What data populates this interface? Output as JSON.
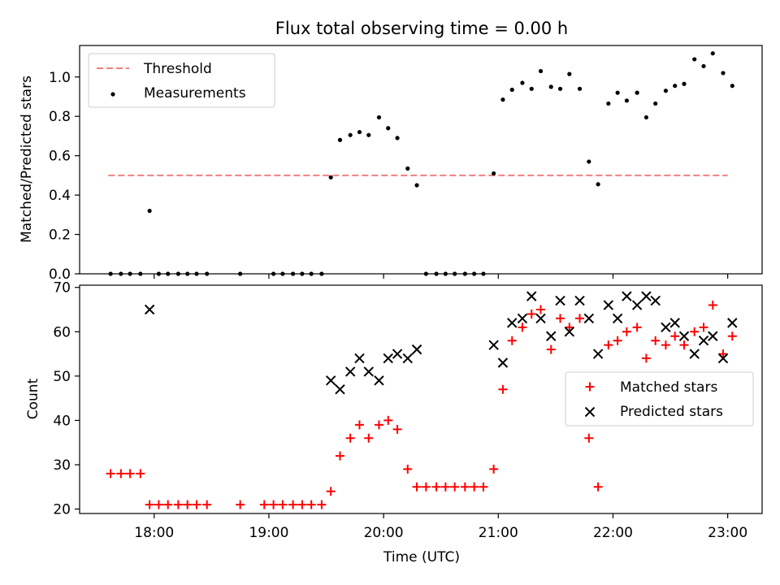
{
  "title": "Flux total observing time = 0.00 h",
  "chart_data": [
    {
      "type": "scatter",
      "ylabel": "Matched/Predicted stars",
      "xlim": [
        17.35,
        23.3
      ],
      "ylim": [
        0.0,
        1.16
      ],
      "yticks": [
        "0.0",
        "0.2",
        "0.4",
        "0.6",
        "0.8",
        "1.0"
      ],
      "legend_position": "top-left",
      "threshold": {
        "name": "Threshold",
        "value": 0.5,
        "x_range": [
          17.6,
          23.0
        ],
        "color": "#f08080",
        "style": "dashed"
      },
      "series": [
        {
          "name": "Measurements",
          "color": "#000000",
          "marker": "dot",
          "points": [
            [
              17.62,
              0
            ],
            [
              17.71,
              0
            ],
            [
              17.79,
              0
            ],
            [
              17.88,
              0
            ],
            [
              17.96,
              0.32
            ],
            [
              18.04,
              0
            ],
            [
              18.12,
              0
            ],
            [
              18.21,
              0
            ],
            [
              18.29,
              0
            ],
            [
              18.37,
              0
            ],
            [
              18.46,
              0
            ],
            [
              18.75,
              0
            ],
            [
              19.04,
              0
            ],
            [
              19.12,
              0
            ],
            [
              19.21,
              0
            ],
            [
              19.29,
              0
            ],
            [
              19.37,
              0
            ],
            [
              19.46,
              0
            ],
            [
              19.54,
              0.49
            ],
            [
              19.62,
              0.68
            ],
            [
              19.71,
              0.705
            ],
            [
              19.79,
              0.72
            ],
            [
              19.87,
              0.705
            ],
            [
              19.96,
              0.795
            ],
            [
              20.04,
              0.74
            ],
            [
              20.12,
              0.69
            ],
            [
              20.21,
              0.535
            ],
            [
              20.29,
              0.45
            ],
            [
              20.37,
              0
            ],
            [
              20.46,
              0
            ],
            [
              20.54,
              0
            ],
            [
              20.62,
              0
            ],
            [
              20.71,
              0
            ],
            [
              20.79,
              0
            ],
            [
              20.87,
              0
            ],
            [
              20.96,
              0.51
            ],
            [
              21.04,
              0.885
            ],
            [
              21.12,
              0.935
            ],
            [
              21.21,
              0.97
            ],
            [
              21.29,
              0.94
            ],
            [
              21.37,
              1.03
            ],
            [
              21.46,
              0.95
            ],
            [
              21.54,
              0.94
            ],
            [
              21.62,
              1.015
            ],
            [
              21.71,
              0.94
            ],
            [
              21.79,
              0.57
            ],
            [
              21.87,
              0.455
            ],
            [
              21.96,
              0.865
            ],
            [
              22.04,
              0.92
            ],
            [
              22.12,
              0.88
            ],
            [
              22.21,
              0.92
            ],
            [
              22.29,
              0.795
            ],
            [
              22.37,
              0.865
            ],
            [
              22.46,
              0.93
            ],
            [
              22.54,
              0.955
            ],
            [
              22.62,
              0.965
            ],
            [
              22.71,
              1.09
            ],
            [
              22.79,
              1.055
            ],
            [
              22.87,
              1.12
            ],
            [
              22.96,
              1.02
            ],
            [
              23.04,
              0.955
            ]
          ]
        }
      ]
    },
    {
      "type": "scatter",
      "xlabel": "Time (UTC)",
      "ylabel": "Count",
      "xlim": [
        17.35,
        23.3
      ],
      "ylim": [
        19,
        70.5
      ],
      "xticks": [
        {
          "value": 18,
          "label": "18:00"
        },
        {
          "value": 19,
          "label": "19:00"
        },
        {
          "value": 20,
          "label": "20:00"
        },
        {
          "value": 21,
          "label": "21:00"
        },
        {
          "value": 22,
          "label": "22:00"
        },
        {
          "value": 23,
          "label": "23:00"
        }
      ],
      "yticks": [
        20,
        30,
        40,
        50,
        60,
        70
      ],
      "legend_position": "center-right",
      "series": [
        {
          "name": "Matched stars",
          "color": "#ff0000",
          "marker": "plus",
          "points": [
            [
              17.62,
              28
            ],
            [
              17.71,
              28
            ],
            [
              17.79,
              28
            ],
            [
              17.88,
              28
            ],
            [
              17.96,
              21
            ],
            [
              18.04,
              21
            ],
            [
              18.12,
              21
            ],
            [
              18.21,
              21
            ],
            [
              18.29,
              21
            ],
            [
              18.37,
              21
            ],
            [
              18.46,
              21
            ],
            [
              18.75,
              21
            ],
            [
              18.96,
              21
            ],
            [
              19.04,
              21
            ],
            [
              19.12,
              21
            ],
            [
              19.21,
              21
            ],
            [
              19.29,
              21
            ],
            [
              19.37,
              21
            ],
            [
              19.46,
              21
            ],
            [
              19.54,
              24
            ],
            [
              19.62,
              32
            ],
            [
              19.71,
              36
            ],
            [
              19.79,
              39
            ],
            [
              19.87,
              36
            ],
            [
              19.96,
              39
            ],
            [
              20.04,
              40
            ],
            [
              20.12,
              38
            ],
            [
              20.21,
              29
            ],
            [
              20.29,
              25
            ],
            [
              20.37,
              25
            ],
            [
              20.46,
              25
            ],
            [
              20.54,
              25
            ],
            [
              20.62,
              25
            ],
            [
              20.71,
              25
            ],
            [
              20.79,
              25
            ],
            [
              20.87,
              25
            ],
            [
              20.96,
              29
            ],
            [
              21.04,
              47
            ],
            [
              21.12,
              58
            ],
            [
              21.21,
              61
            ],
            [
              21.29,
              64
            ],
            [
              21.37,
              65
            ],
            [
              21.46,
              56
            ],
            [
              21.54,
              63
            ],
            [
              21.62,
              61
            ],
            [
              21.71,
              63
            ],
            [
              21.79,
              36
            ],
            [
              21.87,
              25
            ],
            [
              21.96,
              57
            ],
            [
              22.04,
              58
            ],
            [
              22.12,
              60
            ],
            [
              22.21,
              61
            ],
            [
              22.29,
              54
            ],
            [
              22.37,
              58
            ],
            [
              22.46,
              57
            ],
            [
              22.54,
              59
            ],
            [
              22.62,
              57
            ],
            [
              22.71,
              60
            ],
            [
              22.79,
              61
            ],
            [
              22.87,
              66
            ],
            [
              22.96,
              55
            ],
            [
              23.04,
              59
            ]
          ]
        },
        {
          "name": "Predicted stars",
          "color": "#000000",
          "marker": "x",
          "points": [
            [
              17.96,
              65
            ],
            [
              19.54,
              49
            ],
            [
              19.62,
              47
            ],
            [
              19.71,
              51
            ],
            [
              19.79,
              54
            ],
            [
              19.87,
              51
            ],
            [
              19.96,
              49
            ],
            [
              20.04,
              54
            ],
            [
              20.12,
              55
            ],
            [
              20.21,
              54
            ],
            [
              20.29,
              56
            ],
            [
              20.96,
              57
            ],
            [
              21.04,
              53
            ],
            [
              21.12,
              62
            ],
            [
              21.21,
              63
            ],
            [
              21.29,
              68
            ],
            [
              21.37,
              63
            ],
            [
              21.46,
              59
            ],
            [
              21.54,
              67
            ],
            [
              21.62,
              60
            ],
            [
              21.71,
              67
            ],
            [
              21.79,
              63
            ],
            [
              21.87,
              55
            ],
            [
              21.96,
              66
            ],
            [
              22.04,
              63
            ],
            [
              22.12,
              68
            ],
            [
              22.21,
              66
            ],
            [
              22.29,
              68
            ],
            [
              22.37,
              67
            ],
            [
              22.46,
              61
            ],
            [
              22.54,
              62
            ],
            [
              22.62,
              59
            ],
            [
              22.71,
              55
            ],
            [
              22.79,
              58
            ],
            [
              22.87,
              59
            ],
            [
              22.96,
              54
            ],
            [
              23.04,
              62
            ]
          ]
        }
      ]
    }
  ]
}
